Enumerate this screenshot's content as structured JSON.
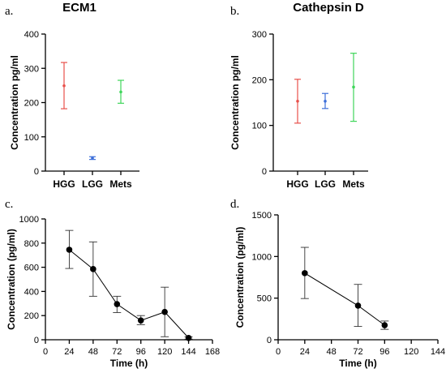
{
  "chart_data": [
    {
      "id": "a",
      "panel_label": "a.",
      "type": "scatter",
      "title": "ECM1",
      "ylabel": "Concentration pg/ml",
      "xlabel": "",
      "categories": [
        "HGG",
        "LGG",
        "Mets"
      ],
      "ylim": [
        0,
        400
      ],
      "yticks": [
        0,
        100,
        200,
        300,
        400
      ],
      "points": [
        {
          "category": "HGG",
          "mean": 249,
          "low": 182,
          "high": 317,
          "color": "#e8504b"
        },
        {
          "category": "LGG",
          "mean": 38,
          "low": 34,
          "high": 42,
          "color": "#3d6fd9"
        },
        {
          "category": "Mets",
          "mean": 231,
          "low": 198,
          "high": 265,
          "color": "#3fd65a"
        }
      ]
    },
    {
      "id": "b",
      "panel_label": "b.",
      "type": "scatter",
      "title": "Cathepsin D",
      "ylabel": "Concentration pg/ml",
      "xlabel": "",
      "categories": [
        "HGG",
        "LGG",
        "Mets"
      ],
      "ylim": [
        0,
        300
      ],
      "yticks": [
        0,
        100,
        200,
        300
      ],
      "points": [
        {
          "category": "HGG",
          "mean": 153,
          "low": 105,
          "high": 201,
          "color": "#e8504b"
        },
        {
          "category": "LGG",
          "mean": 153,
          "low": 137,
          "high": 170,
          "color": "#3d6fd9"
        },
        {
          "category": "Mets",
          "mean": 184,
          "low": 109,
          "high": 258,
          "color": "#3fd65a"
        }
      ]
    },
    {
      "id": "c",
      "panel_label": "c.",
      "type": "line",
      "title": "",
      "ylabel": "Concentration (pg/ml)",
      "xlabel": "Time (h)",
      "xlim": [
        0,
        168
      ],
      "xticks": [
        0,
        24,
        48,
        72,
        96,
        120,
        144,
        168
      ],
      "ylim": [
        0,
        1000
      ],
      "yticks": [
        0,
        200,
        400,
        600,
        800,
        1000
      ],
      "points": [
        {
          "x": 24,
          "y": 745,
          "low": 590,
          "high": 905
        },
        {
          "x": 48,
          "y": 585,
          "low": 360,
          "high": 810
        },
        {
          "x": 72,
          "y": 295,
          "low": 225,
          "high": 360
        },
        {
          "x": 96,
          "y": 160,
          "low": 125,
          "high": 200
        },
        {
          "x": 120,
          "y": 230,
          "low": 25,
          "high": 435
        },
        {
          "x": 144,
          "y": 15,
          "low": 5,
          "high": 25
        }
      ]
    },
    {
      "id": "d",
      "panel_label": "d.",
      "type": "line",
      "title": "",
      "ylabel": "Concentration (pg/ml)",
      "xlabel": "Time (h)",
      "xlim": [
        0,
        144
      ],
      "xticks": [
        0,
        24,
        48,
        72,
        96,
        120,
        144
      ],
      "ylim": [
        0,
        1500
      ],
      "yticks": [
        0,
        500,
        1000,
        1500
      ],
      "points": [
        {
          "x": 24,
          "y": 800,
          "low": 495,
          "high": 1110
        },
        {
          "x": 72,
          "y": 410,
          "low": 160,
          "high": 665
        },
        {
          "x": 96,
          "y": 175,
          "low": 125,
          "high": 225
        }
      ]
    }
  ]
}
